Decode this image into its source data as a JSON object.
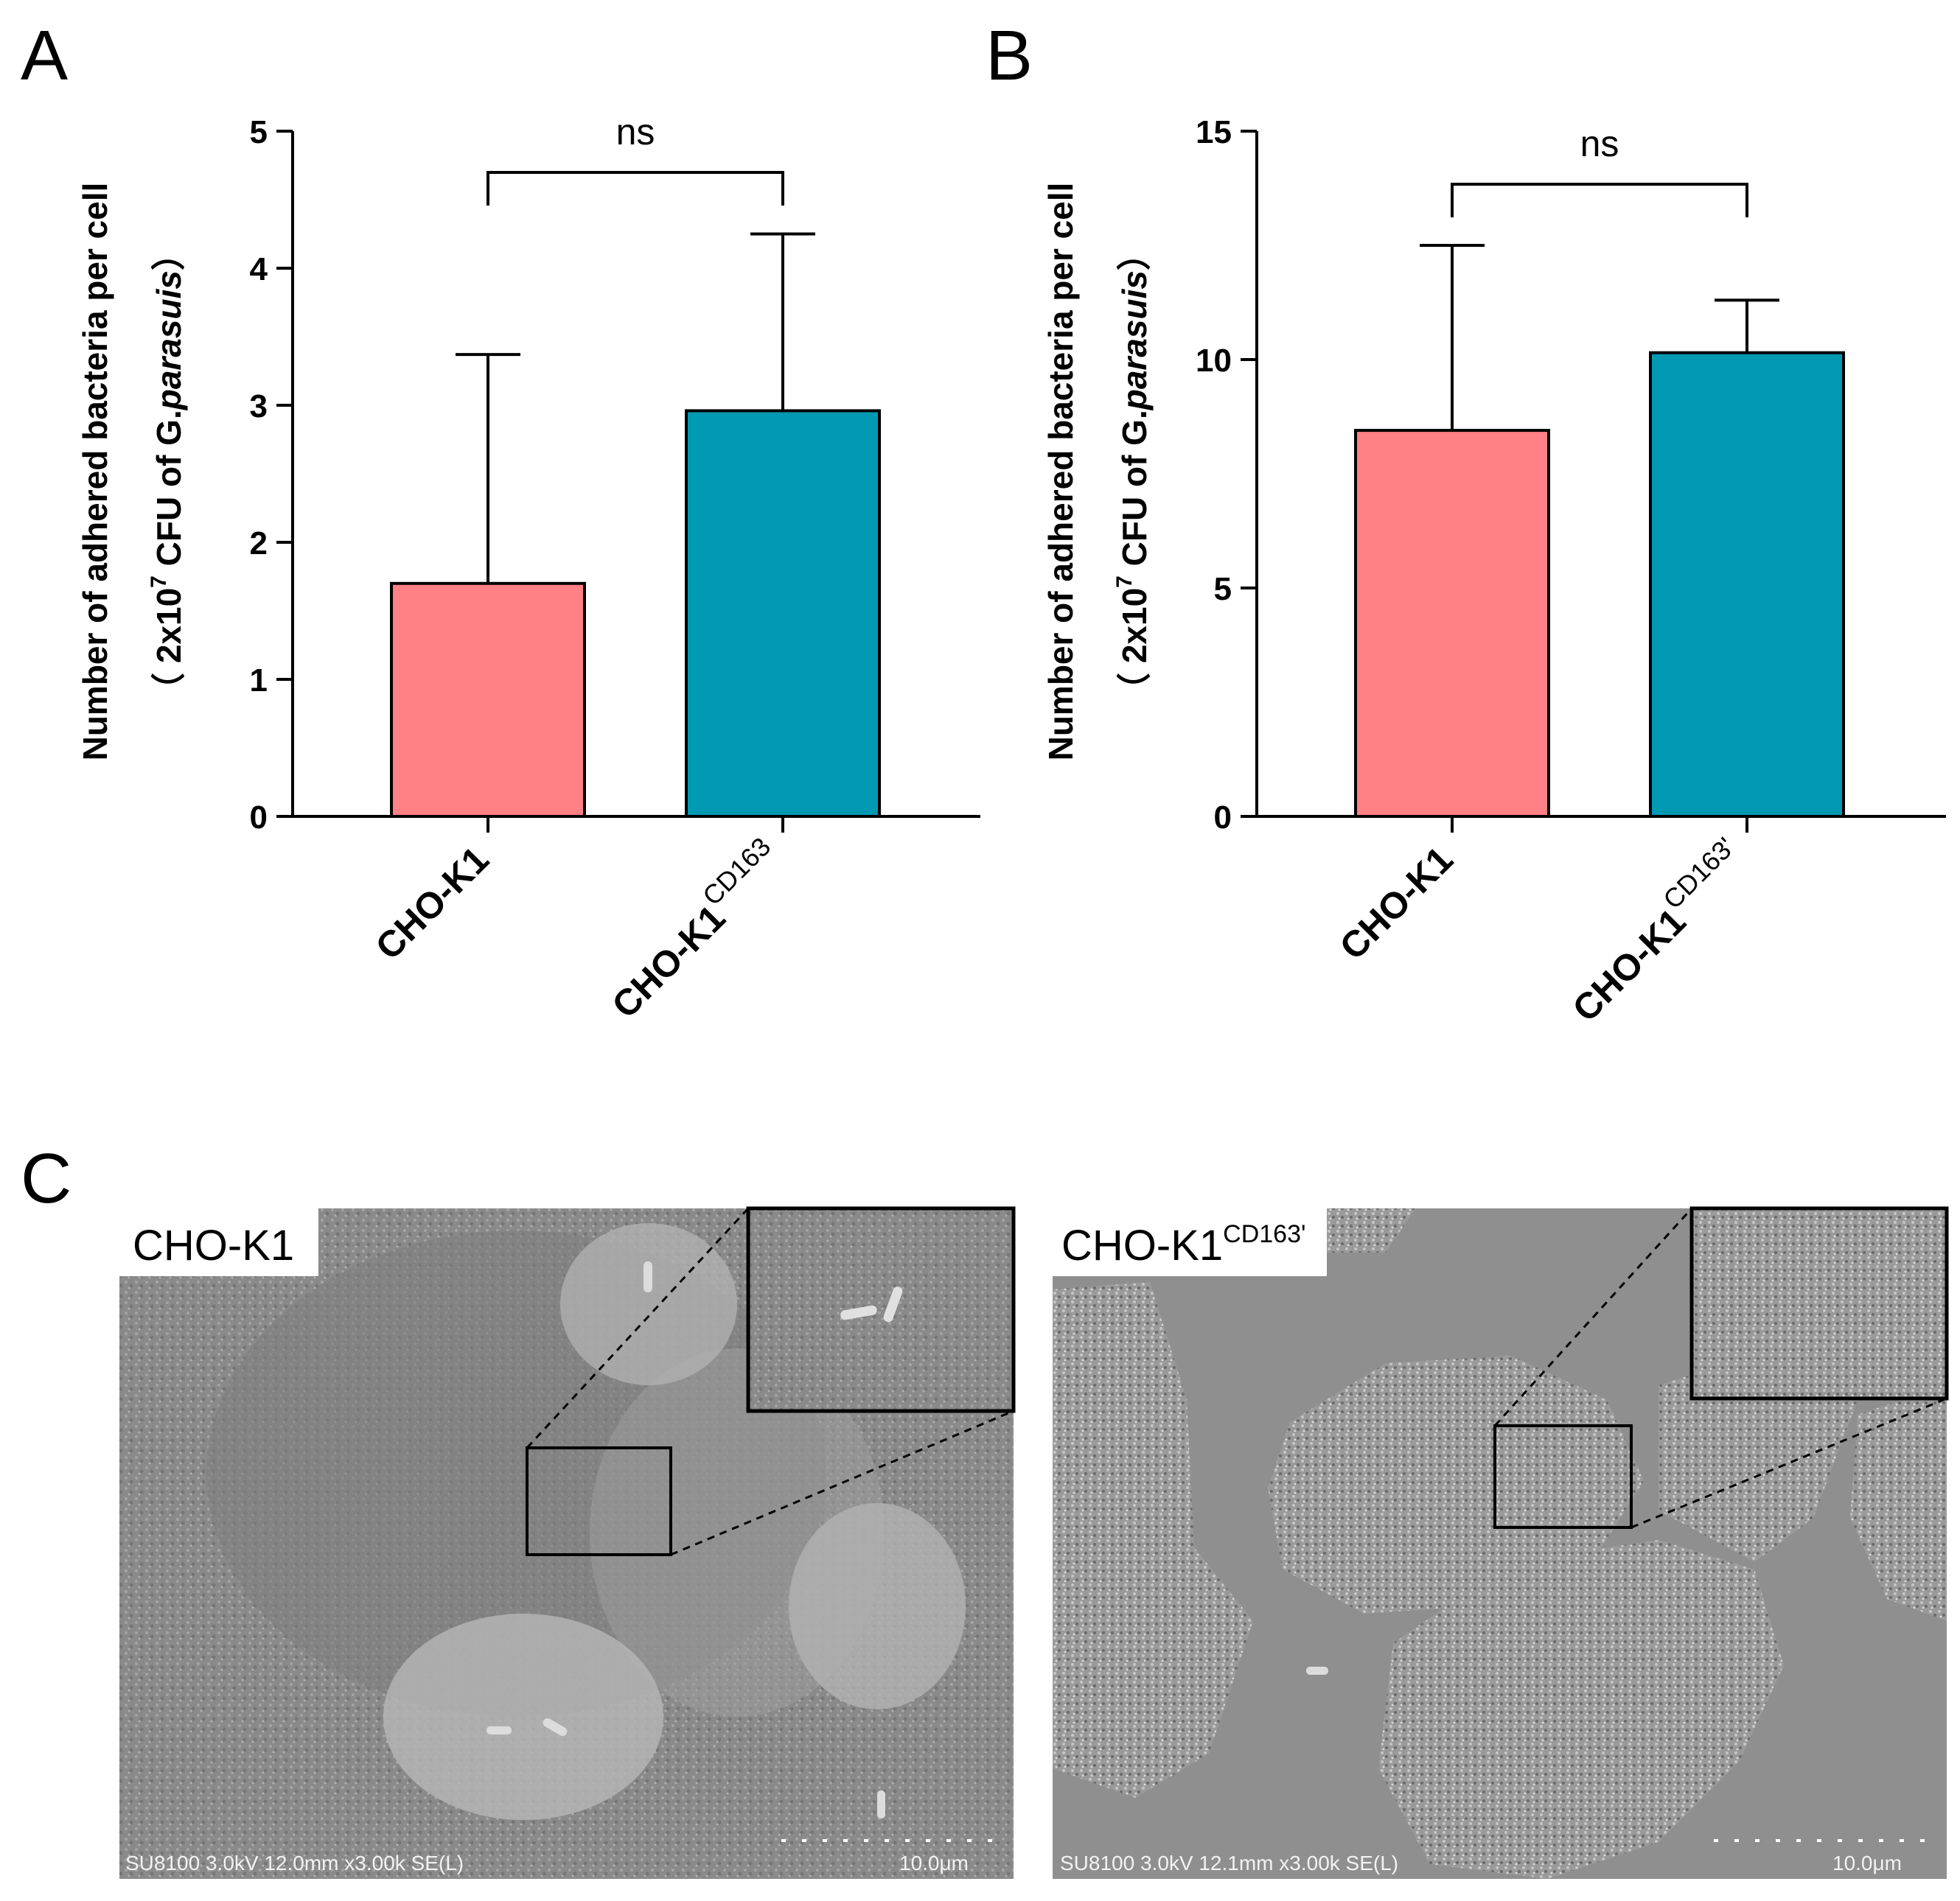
{
  "panels": {
    "A": {
      "letter": "A",
      "chart_data": {
        "type": "bar",
        "categories": [
          "CHO-K1",
          "CHO-K1CD163"
        ],
        "category_labels": [
          {
            "base": "CHO-K1",
            "sup": ""
          },
          {
            "base": "CHO-K1",
            "sup": "CD163"
          }
        ],
        "values": [
          1.7,
          2.96
        ],
        "error_upper": [
          3.37,
          4.25
        ],
        "colors": [
          "#ff8085",
          "#0099b4"
        ],
        "ylabel_line1": "Number of adhered bacteria per cell",
        "ylabel_line2_pre": "（ 2x10",
        "ylabel_line2_sup": "7",
        "ylabel_line2_mid": " CFU of G.",
        "ylabel_line2_ital": "parasuis",
        "ylabel_line2_post": "）",
        "ylim": [
          0,
          5
        ],
        "yticks": [
          0,
          1,
          2,
          3,
          4,
          5
        ],
        "significance": "ns"
      }
    },
    "B": {
      "letter": "B",
      "chart_data": {
        "type": "bar",
        "categories": [
          "CHO-K1",
          "CHO-K1CD163'"
        ],
        "category_labels": [
          {
            "base": "CHO-K1",
            "sup": ""
          },
          {
            "base": "CHO-K1",
            "sup": "CD163'"
          }
        ],
        "values": [
          8.45,
          10.15
        ],
        "error_upper": [
          12.5,
          11.3
        ],
        "colors": [
          "#ff8085",
          "#0099b4"
        ],
        "ylabel_line1": "Number of adhered bacteria per cell",
        "ylabel_line2_pre": "（ 2x10",
        "ylabel_line2_sup": "7",
        "ylabel_line2_mid": " CFU of G.",
        "ylabel_line2_ital": "parasuis",
        "ylabel_line2_post": "）",
        "ylim": [
          0,
          15
        ],
        "yticks": [
          0,
          5,
          10,
          15
        ],
        "significance": "ns"
      }
    },
    "C": {
      "letter": "C",
      "images": [
        {
          "label_base": "CHO-K1",
          "label_sup": "",
          "footer": "SU8100 3.0kV 12.0mm x3.00k SE(L)",
          "scale": "10.0μm"
        },
        {
          "label_base": "CHO-K1",
          "label_sup": "CD163'",
          "footer": "SU8100 3.0kV 12.1mm x3.00k SE(L)",
          "scale": "10.0μm"
        }
      ]
    }
  }
}
